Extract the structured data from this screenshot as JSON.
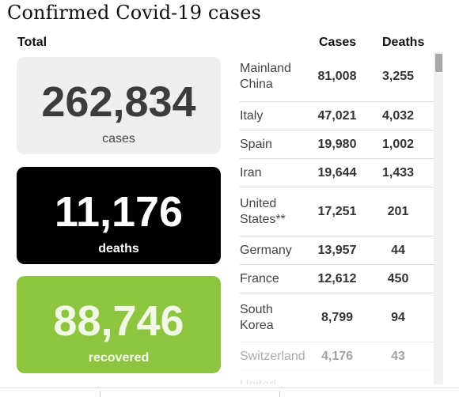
{
  "title": "Confirmed Covid-19 cases",
  "total_label": "Total",
  "cards": {
    "cases": {
      "value": "262,834",
      "label": "cases"
    },
    "deaths": {
      "value": "11,176",
      "label": "deaths"
    },
    "recovered": {
      "value": "88,746",
      "label": "recovered"
    }
  },
  "table": {
    "headers": {
      "cases": "Cases",
      "deaths": "Deaths"
    },
    "rows": [
      {
        "country": "Mainland China",
        "cases": "81,008",
        "deaths": "3,255"
      },
      {
        "country": "Italy",
        "cases": "47,021",
        "deaths": "4,032"
      },
      {
        "country": "Spain",
        "cases": "19,980",
        "deaths": "1,002"
      },
      {
        "country": "Iran",
        "cases": "19,644",
        "deaths": "1,433"
      },
      {
        "country": "United States**",
        "cases": "17,251",
        "deaths": "201"
      },
      {
        "country": "Germany",
        "cases": "13,957",
        "deaths": "44"
      },
      {
        "country": "France",
        "cases": "12,612",
        "deaths": "450"
      },
      {
        "country": "South Korea",
        "cases": "8,799",
        "deaths": "94"
      },
      {
        "country": "Switzerland",
        "cases": "4,176",
        "deaths": "43"
      },
      {
        "country": "United",
        "cases": "",
        "deaths": ""
      }
    ]
  },
  "colors": {
    "cases_card": "#efefef",
    "deaths_card": "#000000",
    "recovered_card": "#8dc540"
  }
}
